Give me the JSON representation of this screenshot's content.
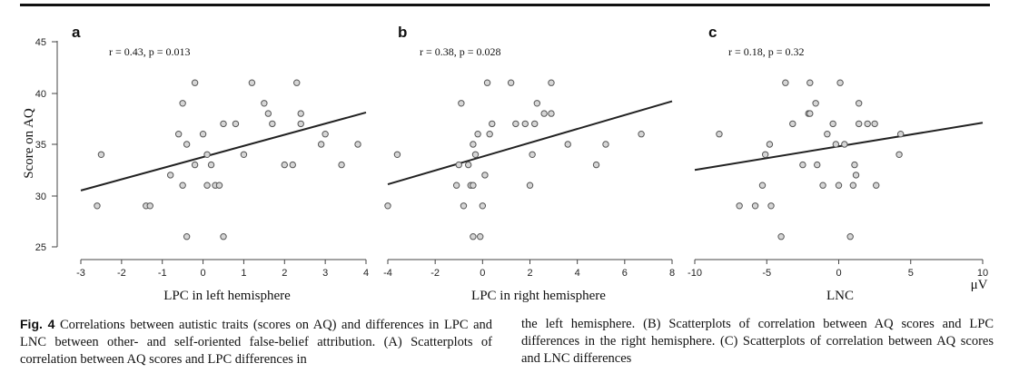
{
  "figure": {
    "y_axis_label": "Score on AQ",
    "y_ticks": [
      "45",
      "40",
      "35",
      "30",
      "25"
    ],
    "unit_label": "μV"
  },
  "chart_data": [
    {
      "type": "scatter",
      "panel": "a",
      "annotation": "r = 0.43, p = 0.013",
      "xlabel": "LPC in left hemisphere",
      "ylabel": "Score on AQ",
      "xlim": [
        -3,
        4
      ],
      "ylim": [
        25,
        45
      ],
      "x_ticks": [
        "-3",
        "-2",
        "-1",
        "0",
        "1",
        "2",
        "3",
        "4"
      ],
      "points": [
        [
          -2.6,
          29
        ],
        [
          -2.5,
          34
        ],
        [
          -1.4,
          29
        ],
        [
          -1.3,
          29
        ],
        [
          -0.8,
          32
        ],
        [
          -0.6,
          36
        ],
        [
          -0.5,
          31
        ],
        [
          -0.5,
          39
        ],
        [
          -0.4,
          35
        ],
        [
          -0.4,
          26
        ],
        [
          -0.2,
          33
        ],
        [
          -0.2,
          41
        ],
        [
          0,
          36
        ],
        [
          0.1,
          34
        ],
        [
          0.1,
          31
        ],
        [
          0.2,
          33
        ],
        [
          0.3,
          31
        ],
        [
          0.4,
          31
        ],
        [
          0.5,
          26
        ],
        [
          0.5,
          37
        ],
        [
          0.8,
          37
        ],
        [
          1.0,
          34
        ],
        [
          1.2,
          41
        ],
        [
          1.5,
          39
        ],
        [
          1.6,
          38
        ],
        [
          1.7,
          37
        ],
        [
          2.0,
          33
        ],
        [
          2.2,
          33
        ],
        [
          2.3,
          41
        ],
        [
          2.4,
          38
        ],
        [
          2.4,
          37
        ],
        [
          2.9,
          35
        ],
        [
          3.0,
          36
        ],
        [
          3.4,
          33
        ],
        [
          3.8,
          35
        ]
      ],
      "fit_line": [
        [
          -3,
          30.5
        ],
        [
          4,
          38.1
        ]
      ]
    },
    {
      "type": "scatter",
      "panel": "b",
      "annotation": "r = 0.38, p = 0.028",
      "xlabel": "LPC in right hemisphere",
      "ylabel": "Score on AQ",
      "xlim": [
        -4,
        8
      ],
      "ylim": [
        25,
        45
      ],
      "x_ticks": [
        "-4",
        "-2",
        "0",
        "2",
        "4",
        "6",
        "8"
      ],
      "points": [
        [
          -4,
          29
        ],
        [
          -3.6,
          34
        ],
        [
          -1.1,
          31
        ],
        [
          -1,
          33
        ],
        [
          -0.9,
          39
        ],
        [
          -0.8,
          29
        ],
        [
          -0.6,
          33
        ],
        [
          -0.5,
          31
        ],
        [
          -0.4,
          31
        ],
        [
          -0.4,
          35
        ],
        [
          -0.4,
          26
        ],
        [
          -0.3,
          34
        ],
        [
          -0.2,
          36
        ],
        [
          -0.1,
          26
        ],
        [
          0,
          29
        ],
        [
          0.1,
          32
        ],
        [
          0.2,
          41
        ],
        [
          0.3,
          36
        ],
        [
          0.4,
          37
        ],
        [
          1.2,
          41
        ],
        [
          1.4,
          37
        ],
        [
          1.8,
          37
        ],
        [
          2.0,
          31
        ],
        [
          2.1,
          34
        ],
        [
          2.2,
          37
        ],
        [
          2.3,
          39
        ],
        [
          2.6,
          38
        ],
        [
          2.9,
          41
        ],
        [
          2.9,
          38
        ],
        [
          3.6,
          35
        ],
        [
          4.8,
          33
        ],
        [
          5.2,
          35
        ],
        [
          6.7,
          36
        ]
      ],
      "fit_line": [
        [
          -4,
          31.1
        ],
        [
          8,
          39.2
        ]
      ]
    },
    {
      "type": "scatter",
      "panel": "c",
      "annotation": "r = 0.18, p = 0.32",
      "xlabel": "LNC",
      "ylabel": "Score on AQ",
      "xlim": [
        -10,
        10
      ],
      "ylim": [
        25,
        45
      ],
      "x_ticks": [
        "-10",
        "-5",
        "0",
        "5",
        "10"
      ],
      "points": [
        [
          -8.3,
          36
        ],
        [
          -6.9,
          29
        ],
        [
          -5.8,
          29
        ],
        [
          -5.3,
          31
        ],
        [
          -5.1,
          34
        ],
        [
          -4.8,
          35
        ],
        [
          -4.7,
          29
        ],
        [
          -4.0,
          26
        ],
        [
          -3.7,
          41
        ],
        [
          -3.2,
          37
        ],
        [
          -2.5,
          33
        ],
        [
          -2.1,
          38
        ],
        [
          -2.0,
          38
        ],
        [
          -2.0,
          41
        ],
        [
          -1.6,
          39
        ],
        [
          -1.5,
          33
        ],
        [
          -1.1,
          31
        ],
        [
          -0.8,
          36
        ],
        [
          -0.4,
          37
        ],
        [
          -0.2,
          35
        ],
        [
          0,
          31
        ],
        [
          0.1,
          41
        ],
        [
          0.4,
          35
        ],
        [
          0.8,
          26
        ],
        [
          1.0,
          31
        ],
        [
          1.1,
          33
        ],
        [
          1.2,
          32
        ],
        [
          1.4,
          39
        ],
        [
          1.4,
          37
        ],
        [
          2.0,
          37
        ],
        [
          2.5,
          37
        ],
        [
          2.6,
          31
        ],
        [
          4.2,
          34
        ],
        [
          4.3,
          36
        ]
      ],
      "fit_line": [
        [
          -10,
          32.5
        ],
        [
          10,
          37.1
        ]
      ]
    }
  ],
  "caption": {
    "fig_label": "Fig. 4",
    "left_text": "  Correlations between autistic traits (scores on AQ) and differences in LPC and LNC between other- and self-oriented false-belief attribution. (A) Scatterplots of correlation between AQ scores and LPC differences in",
    "right_text": "the left hemisphere. (B) Scatterplots of correlation between AQ scores and LPC differences in the right hemisphere. (C) Scatterplots of correlation between AQ scores and LNC differences"
  }
}
